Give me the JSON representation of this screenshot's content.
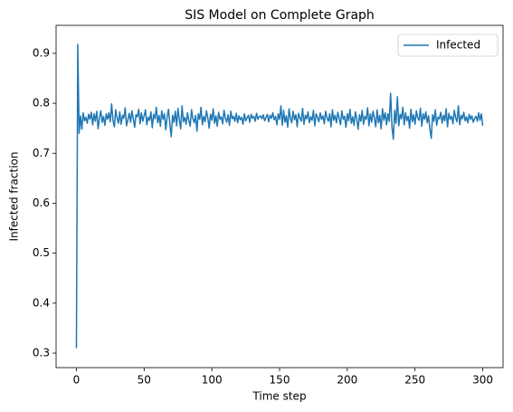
{
  "chart_data": {
    "type": "line",
    "title": "SIS Model on Complete Graph",
    "xlabel": "Time step",
    "ylabel": "Infected fraction",
    "xlim": [
      -15,
      315
    ],
    "ylim": [
      0.271,
      0.956
    ],
    "xticks": [
      0,
      50,
      100,
      150,
      200,
      250,
      300
    ],
    "yticks": [
      0.3,
      0.4,
      0.5,
      0.6,
      0.7,
      0.8,
      0.9
    ],
    "legend": "upper right",
    "x": [
      0,
      1,
      2,
      3,
      4,
      5,
      6,
      7,
      8,
      9,
      10,
      11,
      12,
      13,
      14,
      15,
      16,
      17,
      18,
      19,
      20,
      21,
      22,
      23,
      24,
      25,
      26,
      27,
      28,
      29,
      30,
      31,
      32,
      33,
      34,
      35,
      36,
      37,
      38,
      39,
      40,
      41,
      42,
      43,
      44,
      45,
      46,
      47,
      48,
      49,
      50,
      51,
      52,
      53,
      54,
      55,
      56,
      57,
      58,
      59,
      60,
      61,
      62,
      63,
      64,
      65,
      66,
      67,
      68,
      69,
      70,
      71,
      72,
      73,
      74,
      75,
      76,
      77,
      78,
      79,
      80,
      81,
      82,
      83,
      84,
      85,
      86,
      87,
      88,
      89,
      90,
      91,
      92,
      93,
      94,
      95,
      96,
      97,
      98,
      99,
      100,
      101,
      102,
      103,
      104,
      105,
      106,
      107,
      108,
      109,
      110,
      111,
      112,
      113,
      114,
      115,
      116,
      117,
      118,
      119,
      120,
      121,
      122,
      123,
      124,
      125,
      126,
      127,
      128,
      129,
      130,
      131,
      132,
      133,
      134,
      135,
      136,
      137,
      138,
      139,
      140,
      141,
      142,
      143,
      144,
      145,
      146,
      147,
      148,
      149,
      150,
      151,
      152,
      153,
      154,
      155,
      156,
      157,
      158,
      159,
      160,
      161,
      162,
      163,
      164,
      165,
      166,
      167,
      168,
      169,
      170,
      171,
      172,
      173,
      174,
      175,
      176,
      177,
      178,
      179,
      180,
      181,
      182,
      183,
      184,
      185,
      186,
      187,
      188,
      189,
      190,
      191,
      192,
      193,
      194,
      195,
      196,
      197,
      198,
      199,
      200,
      201,
      202,
      203,
      204,
      205,
      206,
      207,
      208,
      209,
      210,
      211,
      212,
      213,
      214,
      215,
      216,
      217,
      218,
      219,
      220,
      221,
      222,
      223,
      224,
      225,
      226,
      227,
      228,
      229,
      230,
      231,
      232,
      233,
      234,
      235,
      236,
      237,
      238,
      239,
      240,
      241,
      242,
      243,
      244,
      245,
      246,
      247,
      248,
      249,
      250,
      251,
      252,
      253,
      254,
      255,
      256,
      257,
      258,
      259,
      260,
      261,
      262,
      263,
      264,
      265,
      266,
      267,
      268,
      269,
      270,
      271,
      272,
      273,
      274,
      275,
      276,
      277,
      278,
      279,
      280,
      281,
      282,
      283,
      284,
      285,
      286,
      287,
      288,
      289,
      290,
      291,
      292,
      293,
      294,
      295,
      296,
      297,
      298,
      299,
      300
    ],
    "series": [
      {
        "name": "Infected",
        "color": "#1f77b4",
        "values": [
          0.31,
          0.918,
          0.74,
          0.775,
          0.748,
          0.781,
          0.765,
          0.772,
          0.76,
          0.778,
          0.768,
          0.782,
          0.757,
          0.779,
          0.764,
          0.784,
          0.749,
          0.771,
          0.785,
          0.762,
          0.774,
          0.756,
          0.779,
          0.768,
          0.781,
          0.763,
          0.799,
          0.766,
          0.753,
          0.787,
          0.771,
          0.76,
          0.783,
          0.758,
          0.776,
          0.77,
          0.791,
          0.755,
          0.767,
          0.78,
          0.762,
          0.785,
          0.769,
          0.752,
          0.777,
          0.773,
          0.788,
          0.759,
          0.781,
          0.764,
          0.775,
          0.787,
          0.757,
          0.772,
          0.766,
          0.783,
          0.751,
          0.778,
          0.769,
          0.792,
          0.761,
          0.776,
          0.754,
          0.785,
          0.768,
          0.779,
          0.747,
          0.773,
          0.788,
          0.758,
          0.733,
          0.776,
          0.762,
          0.784,
          0.755,
          0.79,
          0.767,
          0.749,
          0.795,
          0.763,
          0.772,
          0.758,
          0.781,
          0.766,
          0.754,
          0.787,
          0.77,
          0.761,
          0.776,
          0.744,
          0.779,
          0.768,
          0.792,
          0.757,
          0.774,
          0.763,
          0.785,
          0.771,
          0.75,
          0.778,
          0.766,
          0.789,
          0.76,
          0.775,
          0.754,
          0.782,
          0.768,
          0.773,
          0.759,
          0.786,
          0.77,
          0.762,
          0.777,
          0.756,
          0.784,
          0.769,
          0.774,
          0.764,
          0.78,
          0.761,
          0.775,
          0.767,
          0.772,
          0.758,
          0.779,
          0.765,
          0.771,
          0.776,
          0.762,
          0.778,
          0.77,
          0.774,
          0.764,
          0.78,
          0.768,
          0.773,
          0.775,
          0.769,
          0.777,
          0.765,
          0.772,
          0.778,
          0.763,
          0.776,
          0.77,
          0.781,
          0.767,
          0.774,
          0.757,
          0.779,
          0.768,
          0.795,
          0.756,
          0.786,
          0.762,
          0.775,
          0.752,
          0.789,
          0.77,
          0.761,
          0.784,
          0.767,
          0.777,
          0.753,
          0.78,
          0.771,
          0.764,
          0.79,
          0.758,
          0.776,
          0.769,
          0.783,
          0.761,
          0.773,
          0.766,
          0.786,
          0.755,
          0.779,
          0.772,
          0.763,
          0.781,
          0.768,
          0.775,
          0.759,
          0.784,
          0.771,
          0.764,
          0.779,
          0.753,
          0.787,
          0.766,
          0.776,
          0.761,
          0.782,
          0.77,
          0.757,
          0.785,
          0.768,
          0.774,
          0.752,
          0.779,
          0.765,
          0.788,
          0.76,
          0.773,
          0.756,
          0.783,
          0.769,
          0.748,
          0.777,
          0.764,
          0.786,
          0.758,
          0.774,
          0.768,
          0.791,
          0.755,
          0.779,
          0.762,
          0.784,
          0.77,
          0.753,
          0.787,
          0.761,
          0.776,
          0.749,
          0.789,
          0.766,
          0.781,
          0.757,
          0.779,
          0.764,
          0.82,
          0.752,
          0.728,
          0.786,
          0.76,
          0.813,
          0.755,
          0.778,
          0.769,
          0.792,
          0.757,
          0.781,
          0.765,
          0.774,
          0.75,
          0.788,
          0.763,
          0.777,
          0.758,
          0.785,
          0.771,
          0.766,
          0.79,
          0.754,
          0.779,
          0.768,
          0.783,
          0.761,
          0.775,
          0.748,
          0.73,
          0.777,
          0.764,
          0.787,
          0.756,
          0.772,
          0.769,
          0.782,
          0.76,
          0.776,
          0.765,
          0.789,
          0.753,
          0.78,
          0.768,
          0.774,
          0.759,
          0.786,
          0.771,
          0.763,
          0.795,
          0.757,
          0.776,
          0.769,
          0.782,
          0.765,
          0.773,
          0.761,
          0.778,
          0.768,
          0.775,
          0.762,
          0.77,
          0.774,
          0.764,
          0.781,
          0.766,
          0.779,
          0.755
        ]
      }
    ]
  }
}
